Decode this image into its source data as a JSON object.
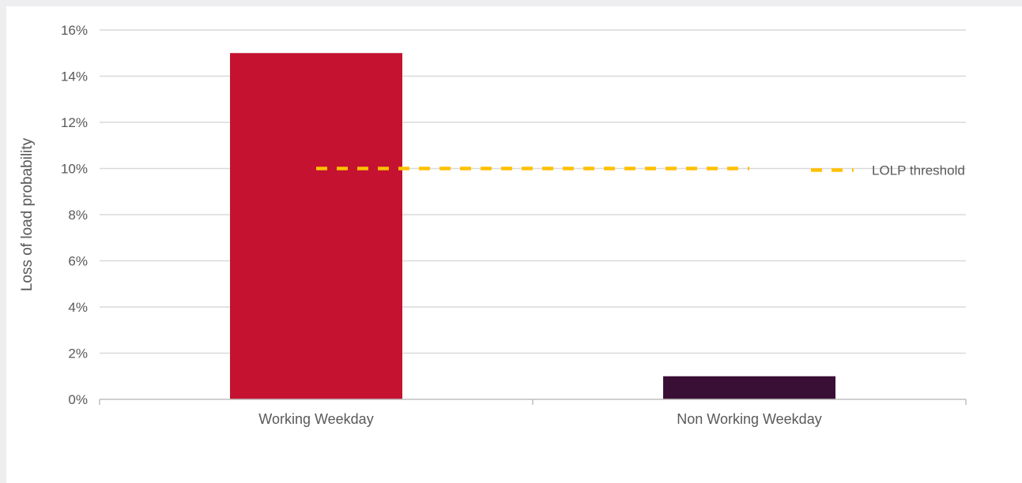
{
  "chart_data": {
    "type": "bar",
    "ylabel": "Loss of load probability",
    "xlabel": "",
    "ylim": [
      0,
      0.16
    ],
    "yticks": [
      0,
      0.02,
      0.04,
      0.06,
      0.08,
      0.1,
      0.12,
      0.14,
      0.16
    ],
    "ytick_labels": [
      "0%",
      "2%",
      "4%",
      "6%",
      "8%",
      "10%",
      "12%",
      "14%",
      "16%"
    ],
    "categories": [
      "Working Weekday",
      "Non Working Weekday"
    ],
    "values": [
      0.15,
      0.01
    ],
    "bar_colors": [
      "#c41230",
      "#3a0f35"
    ],
    "grid": true,
    "threshold": {
      "name": "LOLP threshold",
      "value": 0.1,
      "color": "#ffc000",
      "style": "dashed"
    },
    "legend": {
      "entries": [
        "LOLP threshold"
      ],
      "placement": "right"
    }
  }
}
